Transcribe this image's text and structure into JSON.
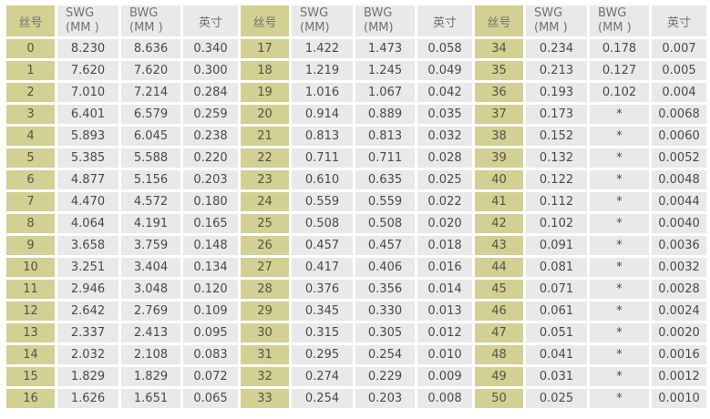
{
  "colors": {
    "gauge_col_bg": "#d2d092",
    "data_cell_bg": "#e9e9e9",
    "gap_bg": "#ffffff",
    "header_text": "#73736b",
    "gauge_text": "#55544a",
    "value_text": "#4a4a4a"
  },
  "table": {
    "groups": [
      {
        "headers": {
          "gauge": "丝号",
          "swg_line1": "SWG",
          "swg_line2": "(MM )",
          "bwg_line1": "BWG",
          "bwg_line2": "(MM )",
          "inch": "英寸"
        },
        "rows": [
          [
            "0",
            "8.230",
            "8.636",
            "0.340"
          ],
          [
            "1",
            "7.620",
            "7.620",
            "0.300"
          ],
          [
            "2",
            "7.010",
            "7.214",
            "0.284"
          ],
          [
            "3",
            "6.401",
            "6.579",
            "0.259"
          ],
          [
            "4",
            "5.893",
            "6.045",
            "0.238"
          ],
          [
            "5",
            "5.385",
            "5.588",
            "0.220"
          ],
          [
            "6",
            "4.877",
            "5.156",
            "0.203"
          ],
          [
            "7",
            "4.470",
            "4.572",
            "0.180"
          ],
          [
            "8",
            "4.064",
            "4.191",
            "0.165"
          ],
          [
            "9",
            "3.658",
            "3.759",
            "0.148"
          ],
          [
            "10",
            "3.251",
            "3.404",
            "0.134"
          ],
          [
            "11",
            "2.946",
            "3.048",
            "0.120"
          ],
          [
            "12",
            "2.642",
            "2.769",
            "0.109"
          ],
          [
            "13",
            "2.337",
            "2.413",
            "0.095"
          ],
          [
            "14",
            "2.032",
            "2.108",
            "0.083"
          ],
          [
            "15",
            "1.829",
            "1.829",
            "0.072"
          ],
          [
            "16",
            "1.626",
            "1.651",
            "0.065"
          ]
        ]
      },
      {
        "headers": {
          "gauge": "丝号",
          "swg_line1": "SWG",
          "swg_line2": "(MM)",
          "bwg_line1": "BWG",
          "bwg_line2": "(MM)",
          "inch": "英寸"
        },
        "rows": [
          [
            "17",
            "1.422",
            "1.473",
            "0.058"
          ],
          [
            "18",
            "1.219",
            "1.245",
            "0.049"
          ],
          [
            "19",
            "1.016",
            "1.067",
            "0.042"
          ],
          [
            "20",
            "0.914",
            "0.889",
            "0.035"
          ],
          [
            "21",
            "0.813",
            "0.813",
            "0.032"
          ],
          [
            "22",
            "0.711",
            "0.711",
            "0.028"
          ],
          [
            "23",
            "0.610",
            "0.635",
            "0.025"
          ],
          [
            "24",
            "0.559",
            "0.559",
            "0.022"
          ],
          [
            "25",
            "0.508",
            "0.508",
            "0.020"
          ],
          [
            "26",
            "0.457",
            "0.457",
            "0.018"
          ],
          [
            "27",
            "0.417",
            "0.406",
            "0.016"
          ],
          [
            "28",
            "0.376",
            "0.356",
            "0.014"
          ],
          [
            "29",
            "0.345",
            "0.330",
            "0.013"
          ],
          [
            "30",
            "0.315",
            "0.305",
            "0.012"
          ],
          [
            "31",
            "0.295",
            "0.254",
            "0.010"
          ],
          [
            "32",
            "0.274",
            "0.229",
            "0.009"
          ],
          [
            "33",
            "0.254",
            "0.203",
            "0.008"
          ]
        ]
      },
      {
        "headers": {
          "gauge": "丝号",
          "swg_line1": "SWG",
          "swg_line2": "(MM )",
          "bwg_line1": "BWG",
          "bwg_line2": "(MM )",
          "inch": "英寸"
        },
        "rows": [
          [
            "34",
            "0.234",
            "0.178",
            "0.007"
          ],
          [
            "35",
            "0.213",
            "0.127",
            "0.005"
          ],
          [
            "36",
            "0.193",
            "0.102",
            "0.004"
          ],
          [
            "37",
            "0.173",
            "*",
            "0.0068"
          ],
          [
            "38",
            "0.152",
            "*",
            "0.0060"
          ],
          [
            "39",
            "0.132",
            "*",
            "0.0052"
          ],
          [
            "40",
            "0.122",
            "*",
            "0.0048"
          ],
          [
            "41",
            "0.112",
            "*",
            "0.0044"
          ],
          [
            "42",
            "0.102",
            "*",
            "0.0040"
          ],
          [
            "43",
            "0.091",
            "*",
            "0.0036"
          ],
          [
            "44",
            "0.081",
            "*",
            "0.0032"
          ],
          [
            "45",
            "0.071",
            "*",
            "0.0028"
          ],
          [
            "46",
            "0.061",
            "*",
            "0.0024"
          ],
          [
            "47",
            "0.051",
            "*",
            "0.0020"
          ],
          [
            "48",
            "0.041",
            "*",
            "0.0016"
          ],
          [
            "49",
            "0.031",
            "*",
            "0.0012"
          ],
          [
            "50",
            "0.025",
            "*",
            "0.0010"
          ]
        ]
      }
    ]
  }
}
